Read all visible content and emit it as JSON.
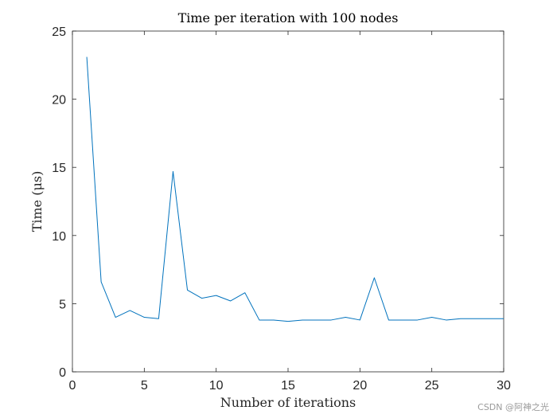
{
  "chart_data": {
    "type": "line",
    "title": "Time per iteration with 100 nodes",
    "xlabel": "Number of iterations",
    "ylabel": "Time (μs)",
    "xlim": [
      0,
      30
    ],
    "ylim": [
      0,
      25
    ],
    "xticks": [
      "0",
      "5",
      "10",
      "15",
      "20",
      "25",
      "30"
    ],
    "yticks": [
      "0",
      "5",
      "10",
      "15",
      "20",
      "25"
    ],
    "grid": false,
    "series": [
      {
        "color": "#0072BD",
        "x": [
          1,
          2,
          3,
          4,
          5,
          6,
          7,
          8,
          9,
          10,
          11,
          12,
          13,
          14,
          15,
          16,
          17,
          18,
          19,
          20,
          21,
          22,
          23,
          24,
          25,
          26,
          27,
          28,
          29,
          30
        ],
        "y": [
          23.1,
          6.6,
          4.0,
          4.5,
          4.0,
          3.9,
          14.7,
          6.0,
          5.4,
          5.6,
          5.2,
          5.8,
          3.8,
          3.8,
          3.7,
          3.8,
          3.8,
          3.8,
          4.0,
          3.8,
          6.9,
          3.8,
          3.8,
          3.8,
          4.0,
          3.8,
          3.9,
          3.9,
          3.9,
          3.9
        ]
      }
    ]
  },
  "watermark": "CSDN @阿神之光"
}
